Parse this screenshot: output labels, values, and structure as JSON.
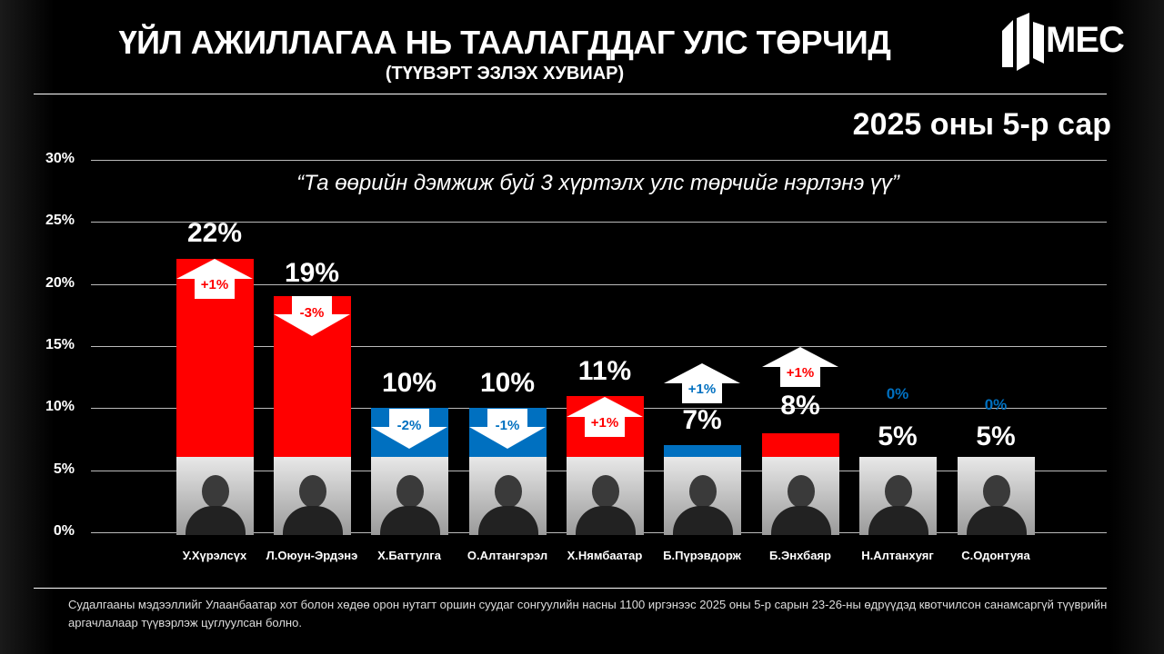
{
  "header": {
    "title": "ҮЙЛ АЖИЛЛАГАА НЬ ТААЛАГДДАГ УЛС ТӨРЧИД",
    "subtitle": "(ТҮҮВЭРТ ЭЗЛЭХ ХУВИАР)",
    "logo": "MEC",
    "date": "2025 оны 5-р сар"
  },
  "chart_data": {
    "type": "bar",
    "title": "ҮЙЛ АЖИЛЛАГАА НЬ ТААЛАГДДАГ УЛС ТӨРЧИД",
    "question": "“Та өөрийн дэмжиж буй 3 хүртэлх улс төрчийг нэрлэнэ үү”",
    "ylim": [
      0,
      30
    ],
    "yticks": [
      "0%",
      "5%",
      "10%",
      "15%",
      "20%",
      "25%",
      "30%"
    ],
    "grid": true,
    "categories": [
      "У.Хүрэлсүх",
      "Л.Оюун-Эрдэнэ",
      "Х.Баттулга",
      "О.Алтангэрэл",
      "Х.Нямбаатар",
      "Б.Пүрэвдорж",
      "Б.Энхбаяр",
      "Н.Алтанхуяг",
      "С.Одонтуяа"
    ],
    "values": [
      22,
      19,
      10,
      10,
      11,
      7,
      8,
      5,
      5
    ],
    "value_labels": [
      "22%",
      "19%",
      "10%",
      "10%",
      "11%",
      "7%",
      "8%",
      "5%",
      "5%"
    ],
    "change": [
      1,
      -3,
      -2,
      -1,
      1,
      1,
      1,
      0,
      0
    ],
    "change_labels": [
      "+1%",
      "-3%",
      "-2%",
      "-1%",
      "+1%",
      "+1%",
      "+1%",
      "0%",
      "0%"
    ],
    "bar_colors": [
      "#ff0000",
      "#ff0000",
      "#0070c0",
      "#0070c0",
      "#ff0000",
      "#0070c0",
      "#ff0000",
      "#0070c0",
      "#0070c0"
    ]
  },
  "footer": {
    "note": "Судалгааны мэдээллийг Улаанбаатар хот болон хөдөө орон нутагт оршин суудаг сонгуулийн насны 1100 иргэнээс 2025 оны 5-р сарын 23-26-ны өдрүүдэд квотчилсон санамсаргүй түүврийн аргачлалаар түүвэрлэж цуглуулсан болно."
  }
}
